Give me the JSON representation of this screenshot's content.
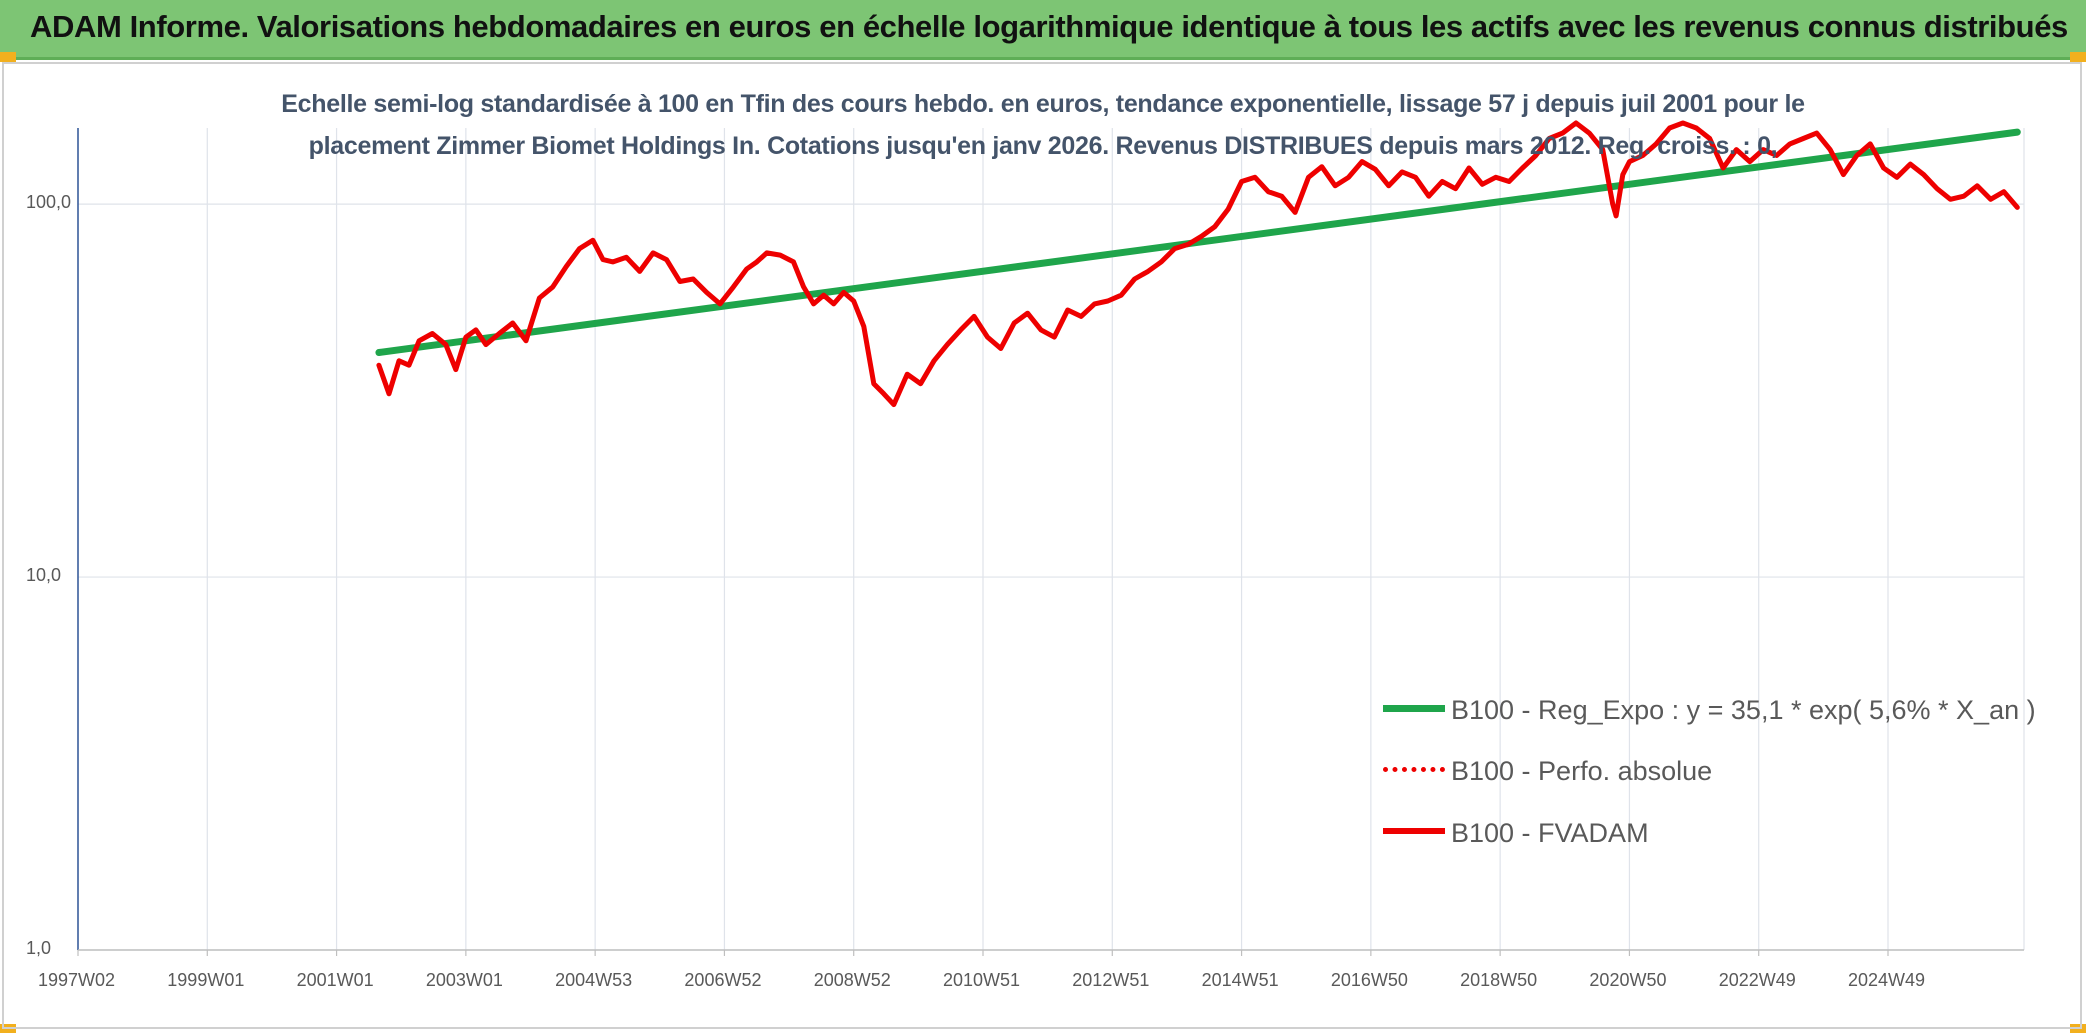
{
  "banner": {
    "title": "ADAM Informe. Valorisations hebdomadaires en euros en échelle logarithmique identique à tous les actifs avec les revenus connus distribués"
  },
  "colors": {
    "banner_bg": "#7dc574",
    "accent_corner": "#f2b01e",
    "trend_green": "#1fa54b",
    "price_red": "#ee0000",
    "grid": "#dfe3ea",
    "axis": "#2f5597"
  },
  "chart_data": {
    "type": "line",
    "title": [
      "Echelle semi-log standardisée à 100 en Tfin des cours hebdo. en euros, tendance exponentielle, lissage 57 j depuis juil 2001 pour le",
      "placement Zimmer Biomet Holdings In. Cotations jusqu'en janv 2026. Revenus DISTRIBUES depuis mars 2012. Reg. croiss. : 0,"
    ],
    "y_scale": "log",
    "ylim": [
      1,
      160
    ],
    "y_ticks": [
      "1,0",
      "10,0",
      "100,0"
    ],
    "y_tick_values": [
      1,
      10,
      100
    ],
    "x_range": [
      1997.0,
      2026.1
    ],
    "x_ticks": [
      "1997W02",
      "1999W01",
      "2001W01",
      "2003W01",
      "2004W53",
      "2006W52",
      "2008W52",
      "2010W51",
      "2012W51",
      "2014W51",
      "2016W50",
      "2018W50",
      "2020W50",
      "2022W49",
      "2024W49"
    ],
    "grid": "vertical",
    "legend_position": "bottom-right",
    "series": [
      {
        "name": "B100 - Reg_Expo : y = 35,1 * exp( 5,6% *  X_an )",
        "style": "solid-thick",
        "color": "#1fa54b",
        "x": [
          2001.5,
          2026.0
        ],
        "y": [
          40.0,
          156.0
        ]
      },
      {
        "name": "B100 - Perfo. absolue",
        "style": "dotted",
        "color": "#ee0000",
        "x": [],
        "y": []
      },
      {
        "name": "B100 - FVADAM",
        "style": "solid",
        "color": "#ee0000",
        "x": [
          2001.5,
          2001.65,
          2001.8,
          2001.95,
          2002.1,
          2002.3,
          2002.5,
          2002.65,
          2002.8,
          2002.95,
          2003.1,
          2003.3,
          2003.5,
          2003.7,
          2003.9,
          2004.1,
          2004.3,
          2004.5,
          2004.7,
          2004.85,
          2005.0,
          2005.2,
          2005.4,
          2005.6,
          2005.8,
          2006.0,
          2006.2,
          2006.4,
          2006.6,
          2006.8,
          2007.0,
          2007.15,
          2007.3,
          2007.5,
          2007.7,
          2007.85,
          2008.0,
          2008.15,
          2008.3,
          2008.45,
          2008.6,
          2008.75,
          2008.9,
          2009.05,
          2009.2,
          2009.4,
          2009.6,
          2009.8,
          2010.0,
          2010.2,
          2010.4,
          2010.6,
          2010.8,
          2011.0,
          2011.2,
          2011.4,
          2011.6,
          2011.8,
          2012.0,
          2012.2,
          2012.4,
          2012.6,
          2012.8,
          2013.0,
          2013.2,
          2013.4,
          2013.6,
          2013.8,
          2014.0,
          2014.2,
          2014.4,
          2014.6,
          2014.8,
          2015.0,
          2015.2,
          2015.4,
          2015.6,
          2015.8,
          2016.0,
          2016.2,
          2016.4,
          2016.6,
          2016.8,
          2017.0,
          2017.2,
          2017.4,
          2017.6,
          2017.8,
          2018.0,
          2018.2,
          2018.4,
          2018.6,
          2018.8,
          2019.0,
          2019.2,
          2019.4,
          2019.6,
          2019.8,
          2019.95,
          2020.0,
          2020.1,
          2020.2,
          2020.4,
          2020.6,
          2020.8,
          2021.0,
          2021.2,
          2021.4,
          2021.6,
          2021.8,
          2022.0,
          2022.2,
          2022.4,
          2022.6,
          2022.8,
          2023.0,
          2023.2,
          2023.4,
          2023.6,
          2023.8,
          2024.0,
          2024.2,
          2024.4,
          2024.6,
          2024.8,
          2025.0,
          2025.2,
          2025.4,
          2025.6,
          2025.8,
          2026.0
        ],
        "y": [
          37,
          31,
          38,
          37,
          43,
          45,
          42,
          36,
          44,
          46,
          42,
          45,
          48,
          43,
          56,
          60,
          68,
          76,
          80,
          71,
          70,
          72,
          66,
          74,
          71,
          62,
          63,
          58,
          54,
          60,
          67,
          70,
          74,
          73,
          70,
          60,
          54,
          57,
          54,
          58,
          55,
          47,
          33,
          31,
          29,
          35,
          33,
          38,
          42,
          46,
          50,
          44,
          41,
          48,
          51,
          46,
          44,
          52,
          50,
          54,
          55,
          57,
          63,
          66,
          70,
          76,
          78,
          82,
          87,
          97,
          115,
          118,
          108,
          105,
          95,
          118,
          126,
          112,
          118,
          130,
          124,
          112,
          122,
          118,
          105,
          115,
          110,
          125,
          113,
          118,
          115,
          125,
          135,
          150,
          155,
          165,
          155,
          140,
          100,
          93,
          120,
          130,
          135,
          145,
          160,
          165,
          160,
          150,
          125,
          140,
          130,
          140,
          135,
          145,
          150,
          155,
          140,
          120,
          135,
          145,
          125,
          118,
          128,
          120,
          110,
          103,
          105,
          112,
          103,
          108,
          98
        ]
      }
    ]
  }
}
